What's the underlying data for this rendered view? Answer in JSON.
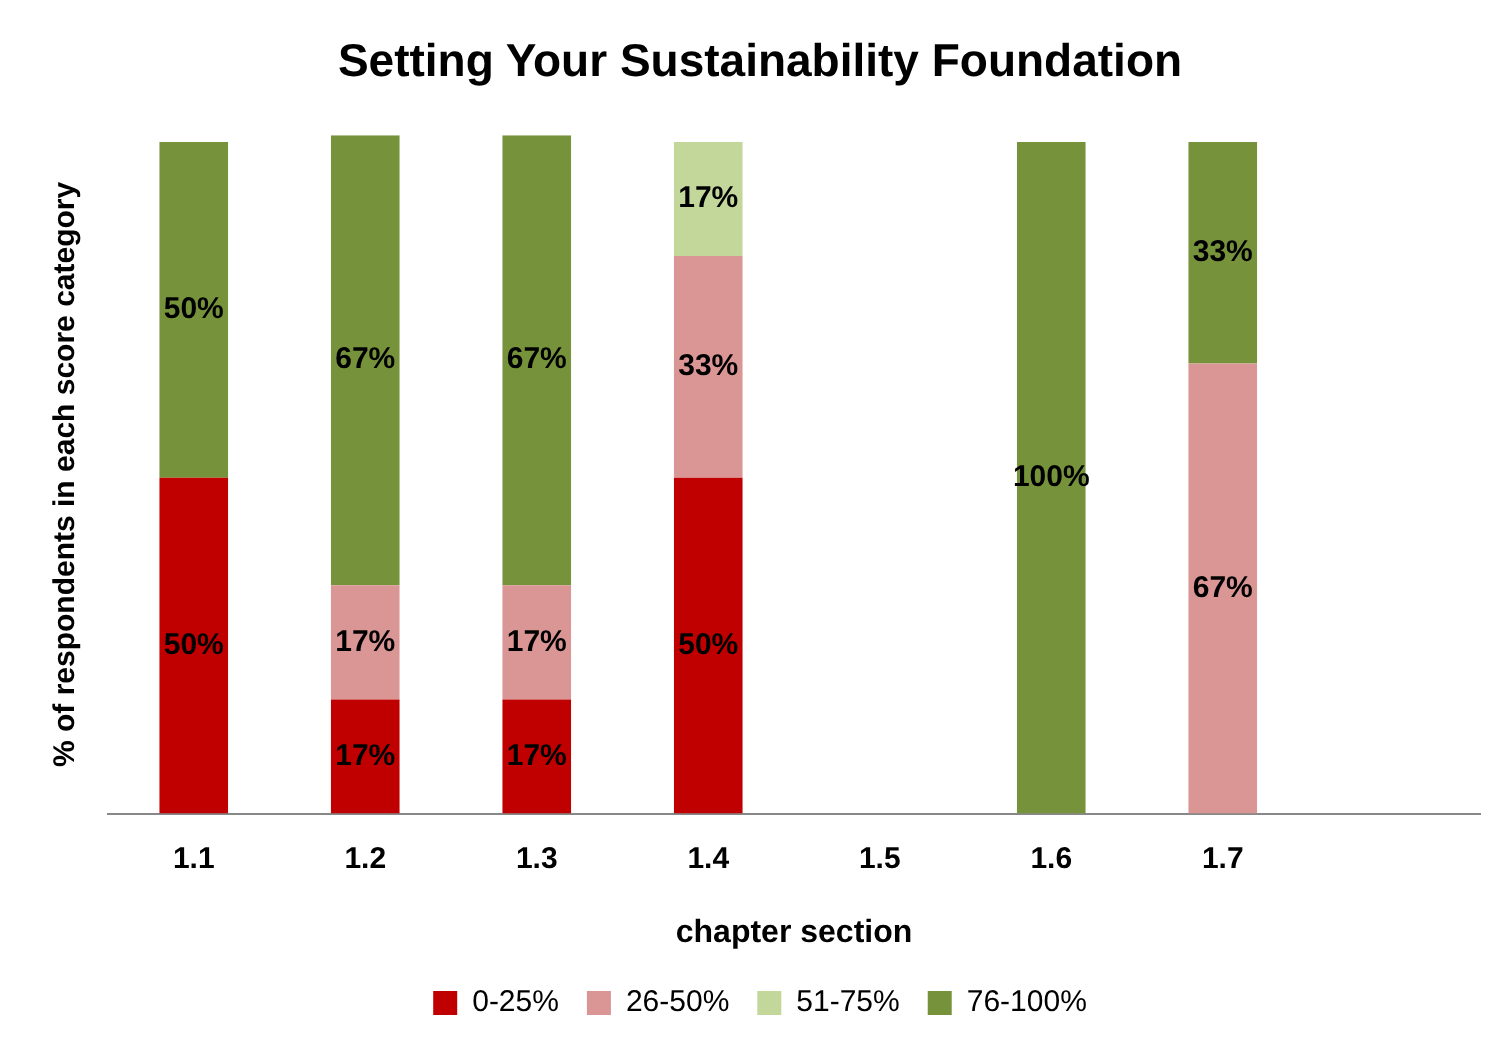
{
  "chart_data": {
    "type": "bar",
    "title": "Setting Your Sustainability Foundation",
    "xlabel": "chapter section",
    "ylabel": "% of respondents in each score category",
    "categories": [
      "1.1",
      "1.2",
      "1.3",
      "1.4",
      "1.5",
      "1.6",
      "1.7",
      null
    ],
    "stacked": true,
    "grid": false,
    "legend": "bottom",
    "tick_labels": "x",
    "series": [
      {
        "name": "0-25%",
        "color": "#c00000",
        "values": [
          50,
          17,
          17,
          50,
          null,
          null,
          null,
          null
        ],
        "value_labels": [
          "50%",
          "17%",
          "17%",
          "50%",
          null,
          null,
          null,
          null
        ]
      },
      {
        "name": "26-50%",
        "color": "#da9694",
        "values": [
          null,
          17,
          17,
          33,
          null,
          null,
          67,
          null
        ],
        "value_labels": [
          null,
          "17%",
          "17%",
          "33%",
          null,
          null,
          "67%",
          null
        ]
      },
      {
        "name": "51-75%",
        "color": "#c4d79b",
        "values": [
          null,
          null,
          null,
          17,
          null,
          null,
          null,
          null
        ],
        "value_labels": [
          null,
          null,
          null,
          "17%",
          null,
          null,
          null,
          null
        ]
      },
      {
        "name": "76-100%",
        "color": "#76933c",
        "values": [
          50,
          67,
          67,
          null,
          null,
          100,
          33,
          null
        ],
        "value_labels": [
          "50%",
          "67%",
          "67%",
          null,
          null,
          "100%",
          "33%",
          null
        ]
      }
    ]
  }
}
